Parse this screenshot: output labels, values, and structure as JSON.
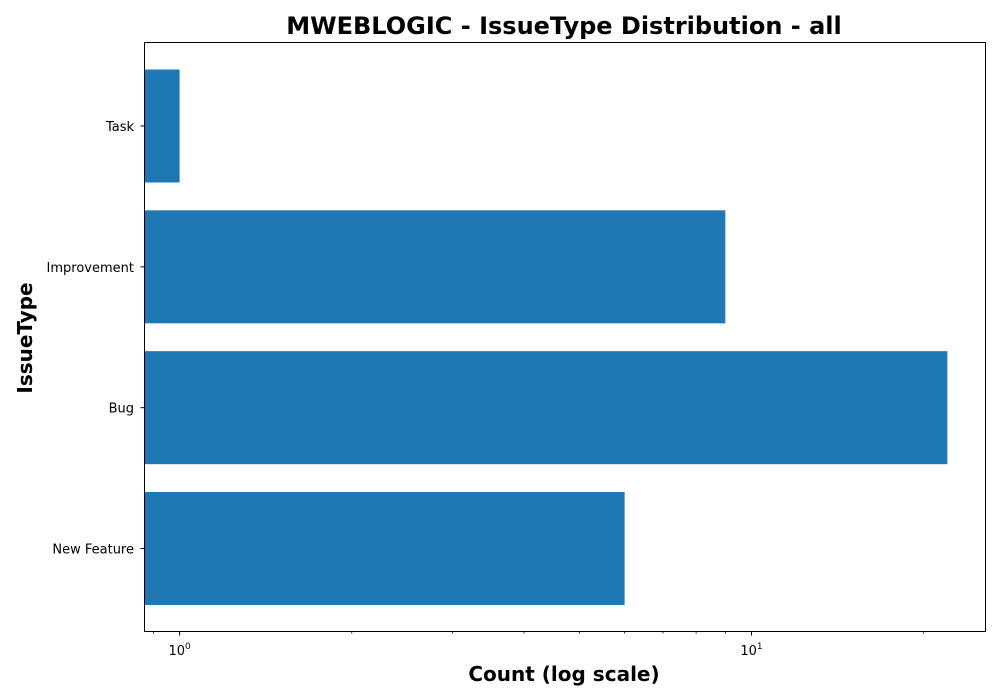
{
  "chart_data": {
    "type": "bar",
    "orientation": "horizontal",
    "title": "MWEBLOGIC - IssueType Distribution - all",
    "xlabel": "Count (log scale)",
    "ylabel": "IssueType",
    "x_scale": "log",
    "xlim": [
      0.87,
      25.6
    ],
    "categories": [
      "New Feature",
      "Bug",
      "Improvement",
      "Task"
    ],
    "series": [
      {
        "values": [
          6,
          22,
          9,
          1
        ]
      }
    ],
    "x_ticks": [
      {
        "value": 1,
        "base": "10",
        "exponent": "0"
      },
      {
        "value": 10,
        "base": "10",
        "exponent": "1"
      }
    ],
    "grid": false,
    "legend": "none",
    "bar_color": "#1f77b4"
  }
}
